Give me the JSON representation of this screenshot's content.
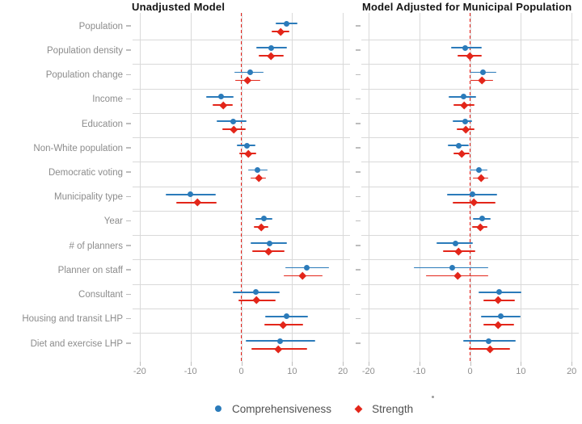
{
  "chart_data": {
    "type": "scatter",
    "subtype": "forest-dot-and-whisker",
    "categories": [
      "Population",
      "Population density",
      "Population change",
      "Income",
      "Education",
      "Non-White population",
      "Democratic voting",
      "Municipality type",
      "Year",
      "# of planners",
      "Planner on staff",
      "Consultant",
      "Housing and transit LHP",
      "Diet and exercise LHP"
    ],
    "x_ticks": [
      -20,
      -10,
      0,
      10,
      20
    ],
    "x_tick_labels": [
      "-20",
      "-10",
      "0",
      "10",
      "20"
    ],
    "x_domain": [
      -21.4,
      21.4
    ],
    "reference_line_x": 0,
    "grid": "on",
    "legend_position": "bottom",
    "colors": {
      "comprehensiveness": "#2b7bba",
      "strength": "#e3261a",
      "reference_line": "#e8251d",
      "gridline": "#d9d9d9",
      "tick": "#bdbdbd",
      "axis_text": "#8f8f8f",
      "category_text": "#8c8c8c",
      "title_text": "#151515"
    },
    "panels": [
      {
        "title": "Unadjusted Model",
        "series": [
          {
            "name": "Comprehensiveness",
            "marker": "circle",
            "color": "#2b7bba",
            "points": [
              {
                "est": 8.9,
                "lo": 6.7,
                "hi": 11.0
              },
              {
                "est": 5.9,
                "lo": 3.0,
                "hi": 9.0
              },
              {
                "est": 1.7,
                "lo": -1.4,
                "hi": 4.3
              },
              {
                "est": -4.0,
                "lo": -7.0,
                "hi": -1.5
              },
              {
                "est": -1.6,
                "lo": -4.8,
                "hi": 1.1
              },
              {
                "est": 1.1,
                "lo": -0.9,
                "hi": 2.8
              },
              {
                "est": 3.2,
                "lo": 1.3,
                "hi": 5.2
              },
              {
                "est": -10.0,
                "lo": -14.8,
                "hi": -5.0
              },
              {
                "est": 4.4,
                "lo": 2.8,
                "hi": 6.1
              },
              {
                "est": 5.5,
                "lo": 1.8,
                "hi": 9.0
              },
              {
                "est": 12.9,
                "lo": 8.6,
                "hi": 17.3
              },
              {
                "est": 2.9,
                "lo": -1.6,
                "hi": 7.5
              },
              {
                "est": 8.9,
                "lo": 4.7,
                "hi": 13.2
              },
              {
                "est": 7.6,
                "lo": 0.8,
                "hi": 14.5
              }
            ]
          },
          {
            "name": "Strength",
            "marker": "diamond",
            "color": "#e3261a",
            "points": [
              {
                "est": 7.7,
                "lo": 6.0,
                "hi": 9.4
              },
              {
                "est": 5.8,
                "lo": 3.4,
                "hi": 8.4
              },
              {
                "est": 1.3,
                "lo": -1.2,
                "hi": 3.8
              },
              {
                "est": -3.6,
                "lo": -5.6,
                "hi": -1.6
              },
              {
                "est": -1.4,
                "lo": -3.7,
                "hi": 0.9
              },
              {
                "est": 1.4,
                "lo": -0.4,
                "hi": 3.0
              },
              {
                "est": 3.5,
                "lo": 1.8,
                "hi": 4.9
              },
              {
                "est": -8.7,
                "lo": -12.8,
                "hi": -4.9
              },
              {
                "est": 3.9,
                "lo": 2.5,
                "hi": 5.4
              },
              {
                "est": 5.4,
                "lo": 2.2,
                "hi": 8.5
              },
              {
                "est": 12.1,
                "lo": 8.4,
                "hi": 16.0
              },
              {
                "est": 3.0,
                "lo": -0.6,
                "hi": 6.7
              },
              {
                "est": 8.3,
                "lo": 4.6,
                "hi": 12.2
              },
              {
                "est": 7.3,
                "lo": 2.0,
                "hi": 13.0
              }
            ]
          }
        ]
      },
      {
        "title": "Model Adjusted for Municipal Population",
        "series": [
          {
            "name": "Comprehensiveness",
            "marker": "circle",
            "color": "#2b7bba",
            "points": [
              null,
              {
                "est": -0.9,
                "lo": -3.7,
                "hi": 2.3
              },
              {
                "est": 2.6,
                "lo": 0.0,
                "hi": 5.2
              },
              {
                "est": -1.3,
                "lo": -4.2,
                "hi": 1.2
              },
              {
                "est": -1.0,
                "lo": -3.5,
                "hi": 0.4
              },
              {
                "est": -2.2,
                "lo": -4.4,
                "hi": -0.2
              },
              {
                "est": 1.8,
                "lo": -0.1,
                "hi": 3.4
              },
              {
                "est": 0.4,
                "lo": -4.5,
                "hi": 5.3
              },
              {
                "est": 2.4,
                "lo": 0.5,
                "hi": 4.0
              },
              {
                "est": -2.8,
                "lo": -6.6,
                "hi": 0.5
              },
              {
                "est": -3.5,
                "lo": -11.0,
                "hi": 3.6
              },
              {
                "est": 5.7,
                "lo": 1.7,
                "hi": 10.1
              },
              {
                "est": 6.0,
                "lo": 2.2,
                "hi": 10.0
              },
              {
                "est": 3.6,
                "lo": -1.4,
                "hi": 9.0
              }
            ]
          },
          {
            "name": "Strength",
            "marker": "diamond",
            "color": "#e3261a",
            "points": [
              null,
              {
                "est": -0.1,
                "lo": -2.5,
                "hi": 2.3
              },
              {
                "est": 2.3,
                "lo": 0.0,
                "hi": 4.5
              },
              {
                "est": -1.2,
                "lo": -3.3,
                "hi": 0.8
              },
              {
                "est": -0.9,
                "lo": -2.6,
                "hi": 0.9
              },
              {
                "est": -1.6,
                "lo": -3.2,
                "hi": 0.0
              },
              {
                "est": 2.2,
                "lo": 0.5,
                "hi": 3.6
              },
              {
                "est": 0.8,
                "lo": -3.4,
                "hi": 5.0
              },
              {
                "est": 2.0,
                "lo": 0.4,
                "hi": 3.4
              },
              {
                "est": -2.2,
                "lo": -5.3,
                "hi": 1.1
              },
              {
                "est": -2.5,
                "lo": -8.6,
                "hi": 3.6
              },
              {
                "est": 5.6,
                "lo": 2.7,
                "hi": 8.9
              },
              {
                "est": 5.6,
                "lo": 2.6,
                "hi": 8.7
              },
              {
                "est": 3.9,
                "lo": -0.2,
                "hi": 7.8
              }
            ]
          }
        ]
      }
    ],
    "legend": {
      "items": [
        {
          "label": "Comprehensiveness",
          "marker": "circle-icon",
          "color": "#2b7bba"
        },
        {
          "label": "Strength",
          "marker": "diamond-icon",
          "color": "#e3261a"
        }
      ]
    }
  }
}
